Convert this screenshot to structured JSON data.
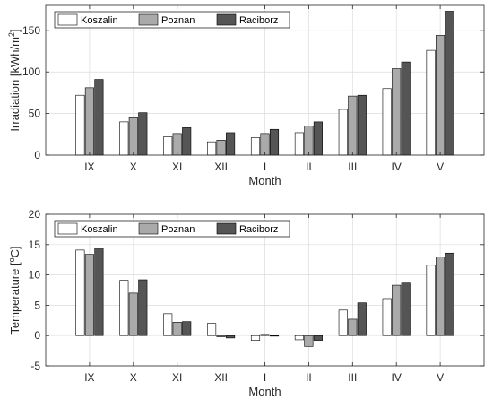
{
  "chart_data": [
    {
      "type": "bar",
      "categories": [
        "IX",
        "X",
        "XI",
        "XII",
        "I",
        "II",
        "III",
        "IV",
        "V"
      ],
      "xlabel": "Month",
      "ylabel_main": "Irradiation [kWh/m",
      "ylabel_sup": "2",
      "ylabel_end": "]",
      "ylim": [
        0,
        180
      ],
      "yticks": [
        "0",
        "50",
        "100",
        "150"
      ],
      "grid": true,
      "legend": "top-left",
      "series": [
        {
          "name": "Koszalin",
          "color": "#ffffff",
          "values": [
            72,
            40,
            22,
            16,
            21,
            27,
            55,
            80,
            126
          ]
        },
        {
          "name": "Poznan",
          "color": "#aaaaaa",
          "values": [
            81,
            45,
            26,
            18,
            26,
            35,
            71,
            104,
            144
          ]
        },
        {
          "name": "Raciborz",
          "color": "#555555",
          "values": [
            91,
            51,
            33,
            27,
            31,
            40,
            72,
            112,
            173
          ]
        }
      ]
    },
    {
      "type": "bar",
      "categories": [
        "IX",
        "X",
        "XI",
        "XII",
        "I",
        "II",
        "III",
        "IV",
        "V"
      ],
      "xlabel": "Month",
      "ylabel_main": "Temperature [",
      "ylabel_sup": "o",
      "ylabel_end": "C]",
      "ylim": [
        -5,
        20
      ],
      "yticks": [
        "-5",
        "0",
        "5",
        "10",
        "15",
        "20"
      ],
      "grid": true,
      "legend": "top-left",
      "series": [
        {
          "name": "Koszalin",
          "color": "#ffffff",
          "values": [
            14.1,
            9.1,
            3.6,
            2.0,
            -0.8,
            -0.7,
            4.2,
            6.1,
            11.6
          ]
        },
        {
          "name": "Poznan",
          "color": "#aaaaaa",
          "values": [
            13.4,
            7.0,
            2.2,
            -0.2,
            0.2,
            -1.8,
            2.7,
            8.3,
            13.0
          ]
        },
        {
          "name": "Raciborz",
          "color": "#555555",
          "values": [
            14.4,
            9.2,
            2.3,
            -0.4,
            -0.1,
            -0.8,
            5.4,
            8.8,
            13.6
          ]
        }
      ]
    }
  ]
}
